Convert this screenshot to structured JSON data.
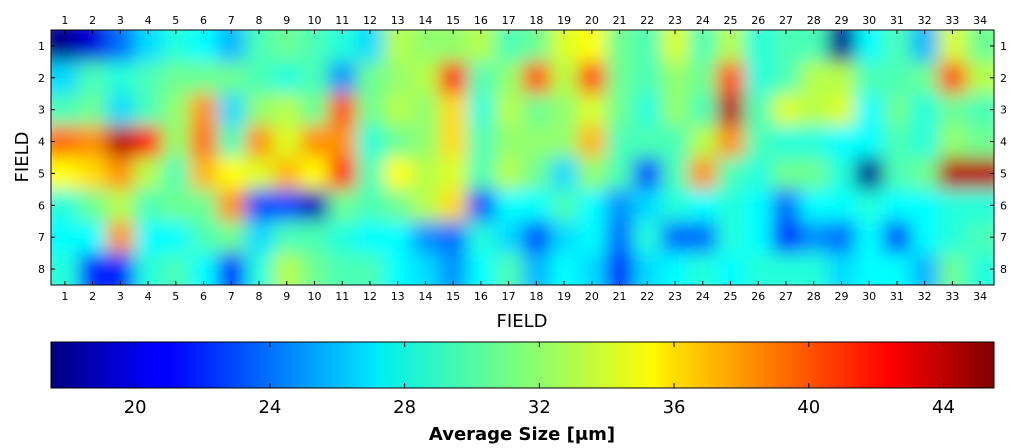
{
  "chart_data": {
    "type": "heatmap",
    "x_ticks": [
      "1",
      "2",
      "3",
      "4",
      "5",
      "6",
      "7",
      "8",
      "9",
      "10",
      "11",
      "12",
      "13",
      "14",
      "15",
      "16",
      "17",
      "18",
      "19",
      "20",
      "21",
      "22",
      "23",
      "24",
      "25",
      "26",
      "27",
      "28",
      "29",
      "30",
      "31",
      "32",
      "33",
      "34"
    ],
    "y_ticks": [
      "1",
      "2",
      "3",
      "4",
      "5",
      "6",
      "7",
      "8"
    ],
    "xlabel": "FIELD",
    "ylabel": "FIELD",
    "colorbar": {
      "label": "Average Size [μm]",
      "ticks": [
        "20",
        "24",
        "28",
        "32",
        "36",
        "40",
        "44"
      ],
      "range": [
        17.5,
        45.5
      ],
      "colormap": "jet"
    },
    "values": [
      [
        18,
        20,
        24,
        27,
        29,
        28,
        26,
        30,
        31,
        30,
        29,
        27,
        33,
        32,
        32,
        33,
        30,
        31,
        34,
        35,
        31,
        30,
        34,
        30,
        33,
        29,
        30,
        30,
        18,
        28,
        30,
        26,
        34,
        31
      ],
      [
        27,
        30,
        29,
        30,
        31,
        31,
        31,
        30,
        29,
        30,
        25,
        31,
        32,
        33,
        42,
        30,
        32,
        40,
        33,
        40,
        31,
        30,
        32,
        31,
        40,
        29,
        30,
        33,
        33,
        30,
        30,
        31,
        40,
        33
      ],
      [
        30,
        31,
        27,
        30,
        32,
        38,
        27,
        32,
        33,
        31,
        40,
        31,
        33,
        32,
        36,
        29,
        33,
        31,
        32,
        34,
        31,
        29,
        32,
        30,
        44,
        30,
        34,
        33,
        34,
        28,
        31,
        29,
        31,
        30
      ],
      [
        39,
        38,
        44,
        42,
        32,
        39,
        30,
        38,
        34,
        38,
        38,
        29,
        31,
        32,
        36,
        30,
        32,
        32,
        32,
        37,
        30,
        30,
        30,
        33,
        38,
        30,
        29,
        29,
        28,
        28,
        30,
        29,
        32,
        31
      ],
      [
        35,
        36,
        38,
        33,
        30,
        37,
        35,
        34,
        37,
        35,
        42,
        30,
        35,
        33,
        34,
        30,
        33,
        31,
        27,
        32,
        30,
        23,
        30,
        38,
        30,
        29,
        31,
        31,
        29,
        18,
        30,
        31,
        44,
        44
      ],
      [
        29,
        31,
        33,
        30,
        31,
        31,
        38,
        23,
        23,
        19,
        31,
        30,
        31,
        33,
        36,
        23,
        28,
        28,
        30,
        28,
        25,
        27,
        29,
        28,
        29,
        28,
        24,
        28,
        28,
        29,
        28,
        28,
        29,
        29
      ],
      [
        28,
        28,
        38,
        28,
        28,
        30,
        31,
        27,
        30,
        30,
        29,
        28,
        28,
        25,
        24,
        29,
        27,
        23,
        27,
        28,
        24,
        29,
        24,
        24,
        29,
        28,
        22,
        25,
        24,
        28,
        23,
        28,
        29,
        30
      ],
      [
        29,
        22,
        22,
        29,
        30,
        28,
        22,
        29,
        33,
        31,
        30,
        30,
        28,
        27,
        25,
        28,
        30,
        26,
        28,
        27,
        22,
        27,
        28,
        29,
        28,
        29,
        29,
        29,
        27,
        28,
        28,
        26,
        31,
        29
      ]
    ]
  }
}
